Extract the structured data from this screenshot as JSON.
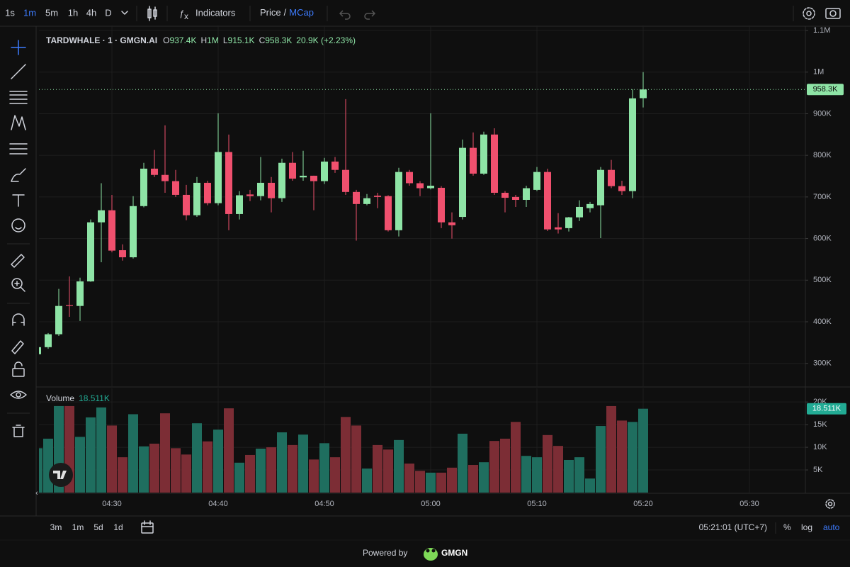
{
  "toolbar": {
    "intervals": [
      "1s",
      "1m",
      "5m",
      "1h",
      "4h",
      "D"
    ],
    "active_interval": 1,
    "indicators": "Indicators",
    "price": "Price",
    "separator": "/",
    "mcap": "MCap"
  },
  "chart_data": [
    {
      "type": "candlestick",
      "title": "TARDWHALE · 1 · GMGN.AI",
      "ohlc_legend": [
        {
          "label": "O",
          "value": "937.4K"
        },
        {
          "label": "H",
          "value": "1M"
        },
        {
          "label": "L",
          "value": "915.1K"
        },
        {
          "label": "C",
          "value": "958.3K"
        }
      ],
      "change": "20.9K (+2.23%)",
      "categories": [
        null,
        null,
        null,
        null,
        null,
        null,
        null,
        "04:30",
        null,
        null,
        null,
        null,
        null,
        null,
        null,
        null,
        null,
        "04:40",
        null,
        null,
        null,
        null,
        null,
        null,
        null,
        null,
        null,
        "04:50",
        null,
        null,
        null,
        null,
        null,
        null,
        null,
        null,
        null,
        "05:00",
        null,
        null,
        null,
        null,
        null,
        null,
        null,
        null,
        null,
        "05:10",
        null,
        null,
        null,
        null,
        null,
        null,
        null,
        null,
        null,
        "05:20",
        null,
        null,
        null,
        null,
        null,
        null,
        null,
        null,
        null,
        "05:30",
        null,
        null,
        null,
        null
      ],
      "open": [
        322000,
        339000,
        370000,
        440000,
        438000,
        497000,
        639000,
        668000,
        572000,
        555000,
        678000,
        768000,
        753000,
        738000,
        705000,
        656000,
        734000,
        685000,
        808000,
        659000,
        706000,
        702000,
        734000,
        697000,
        782000,
        747000,
        751000,
        738000,
        785000,
        765000,
        712000,
        683000,
        703000,
        702000,
        620000,
        760000,
        733000,
        721000,
        722000,
        639000,
        652000,
        818000,
        756000,
        850000,
        710000,
        700000,
        693000,
        717000,
        760000,
        627000,
        625000,
        651000,
        673000,
        680000,
        765000,
        726000,
        714000,
        937400,
        null,
        null,
        null,
        null,
        null,
        null,
        null,
        null,
        null,
        null,
        null,
        null,
        null,
        null
      ],
      "high": [
        345000,
        373000,
        479000,
        509000,
        506000,
        646000,
        733000,
        705000,
        586000,
        702000,
        782000,
        813000,
        872000,
        765000,
        729000,
        748000,
        739000,
        901000,
        850000,
        714000,
        717000,
        796000,
        748000,
        792000,
        808000,
        811000,
        751000,
        794000,
        796000,
        935000,
        717000,
        707000,
        710000,
        704000,
        770000,
        765000,
        738000,
        901000,
        726000,
        663000,
        838000,
        855000,
        857000,
        865000,
        714000,
        705000,
        727000,
        772000,
        768000,
        661000,
        652000,
        692000,
        688000,
        772000,
        789000,
        739000,
        959000,
        1000000,
        null,
        null,
        null,
        null,
        null,
        null,
        null,
        null,
        null,
        null,
        null,
        null,
        null,
        null
      ],
      "low": [
        320000,
        335000,
        366000,
        412000,
        402000,
        496000,
        543000,
        567000,
        547000,
        552000,
        675000,
        748000,
        710000,
        700000,
        644000,
        652000,
        680000,
        680000,
        620000,
        646000,
        690000,
        692000,
        663000,
        688000,
        739000,
        739000,
        668000,
        731000,
        758000,
        705000,
        595000,
        680000,
        673000,
        617000,
        605000,
        727000,
        702000,
        718000,
        625000,
        600000,
        646000,
        751000,
        753000,
        705000,
        663000,
        676000,
        676000,
        714000,
        618000,
        612000,
        617000,
        642000,
        663000,
        601000,
        721000,
        705000,
        697000,
        915100,
        null,
        null,
        null,
        null,
        null,
        null,
        null,
        null,
        null,
        null,
        null,
        null,
        null,
        null
      ],
      "close": [
        339000,
        370000,
        438000,
        438000,
        497000,
        639000,
        668000,
        571000,
        555000,
        678000,
        768000,
        753000,
        738000,
        705000,
        656000,
        734000,
        685000,
        808000,
        659000,
        704000,
        702000,
        734000,
        697000,
        782000,
        744000,
        751000,
        738000,
        785000,
        765000,
        712000,
        683000,
        697000,
        700000,
        620000,
        760000,
        733000,
        721000,
        727000,
        639000,
        632000,
        818000,
        756000,
        850000,
        710000,
        698000,
        693000,
        721000,
        760000,
        622000,
        622000,
        651000,
        676000,
        683000,
        765000,
        726000,
        714000,
        937000,
        958300,
        null,
        null,
        null,
        null,
        null,
        null,
        null,
        null,
        null,
        null,
        null,
        null,
        null,
        null
      ],
      "price_label": "958.3K",
      "up_color": "#8ee4a6",
      "down_color": "#f0506e",
      "ylim": [
        245000,
        1112000
      ],
      "yticks": [
        {
          "value": 300000,
          "label": "300K"
        },
        {
          "value": 400000,
          "label": "400K"
        },
        {
          "value": 500000,
          "label": "500K"
        },
        {
          "value": 600000,
          "label": "600K"
        },
        {
          "value": 700000,
          "label": "700K"
        },
        {
          "value": 800000,
          "label": "800K"
        },
        {
          "value": 900000,
          "label": "900K"
        },
        {
          "value": 1000000,
          "label": "1M"
        },
        {
          "value": 1100000,
          "label": "1.1M"
        }
      ],
      "grid": true
    },
    {
      "type": "volume",
      "title": "Volume",
      "values": [
        9800,
        11900,
        19100,
        19100,
        12300,
        16600,
        18800,
        14800,
        7800,
        17300,
        10200,
        10800,
        17500,
        9800,
        8400,
        15300,
        11300,
        13900,
        18600,
        6600,
        8300,
        9700,
        10000,
        13300,
        10500,
        12800,
        7300,
        10900,
        7800,
        16700,
        14800,
        5300,
        10500,
        9500,
        11600,
        6400,
        4800,
        4400,
        4400,
        5500,
        13000,
        6100,
        6700,
        11400,
        11900,
        15600,
        8100,
        7800,
        12700,
        10300,
        7200,
        7800,
        3100,
        14700,
        19100,
        15900,
        15600,
        18511,
        null,
        null,
        null,
        null,
        null,
        null,
        null,
        null,
        null,
        null,
        null,
        null,
        null,
        null
      ],
      "value_label": "18.511K",
      "up_color": "#1f6e5f",
      "down_color": "#7c2d35",
      "label_color": "#22ab94",
      "ylim": [
        0,
        23000
      ],
      "yticks": [
        {
          "value": 5000,
          "label": "5K"
        },
        {
          "value": 10000,
          "label": "10K"
        },
        {
          "value": 15000,
          "label": "15K"
        },
        {
          "value": 20000,
          "label": "20K"
        }
      ],
      "grid": true
    }
  ],
  "footer": {
    "ranges": [
      "3m",
      "1m",
      "5d",
      "1d"
    ],
    "clock": "05:21:01 (UTC+7)",
    "percent": "%",
    "log": "log",
    "auto": "auto",
    "powered_by": "Powered by",
    "brand": "GMGN"
  }
}
